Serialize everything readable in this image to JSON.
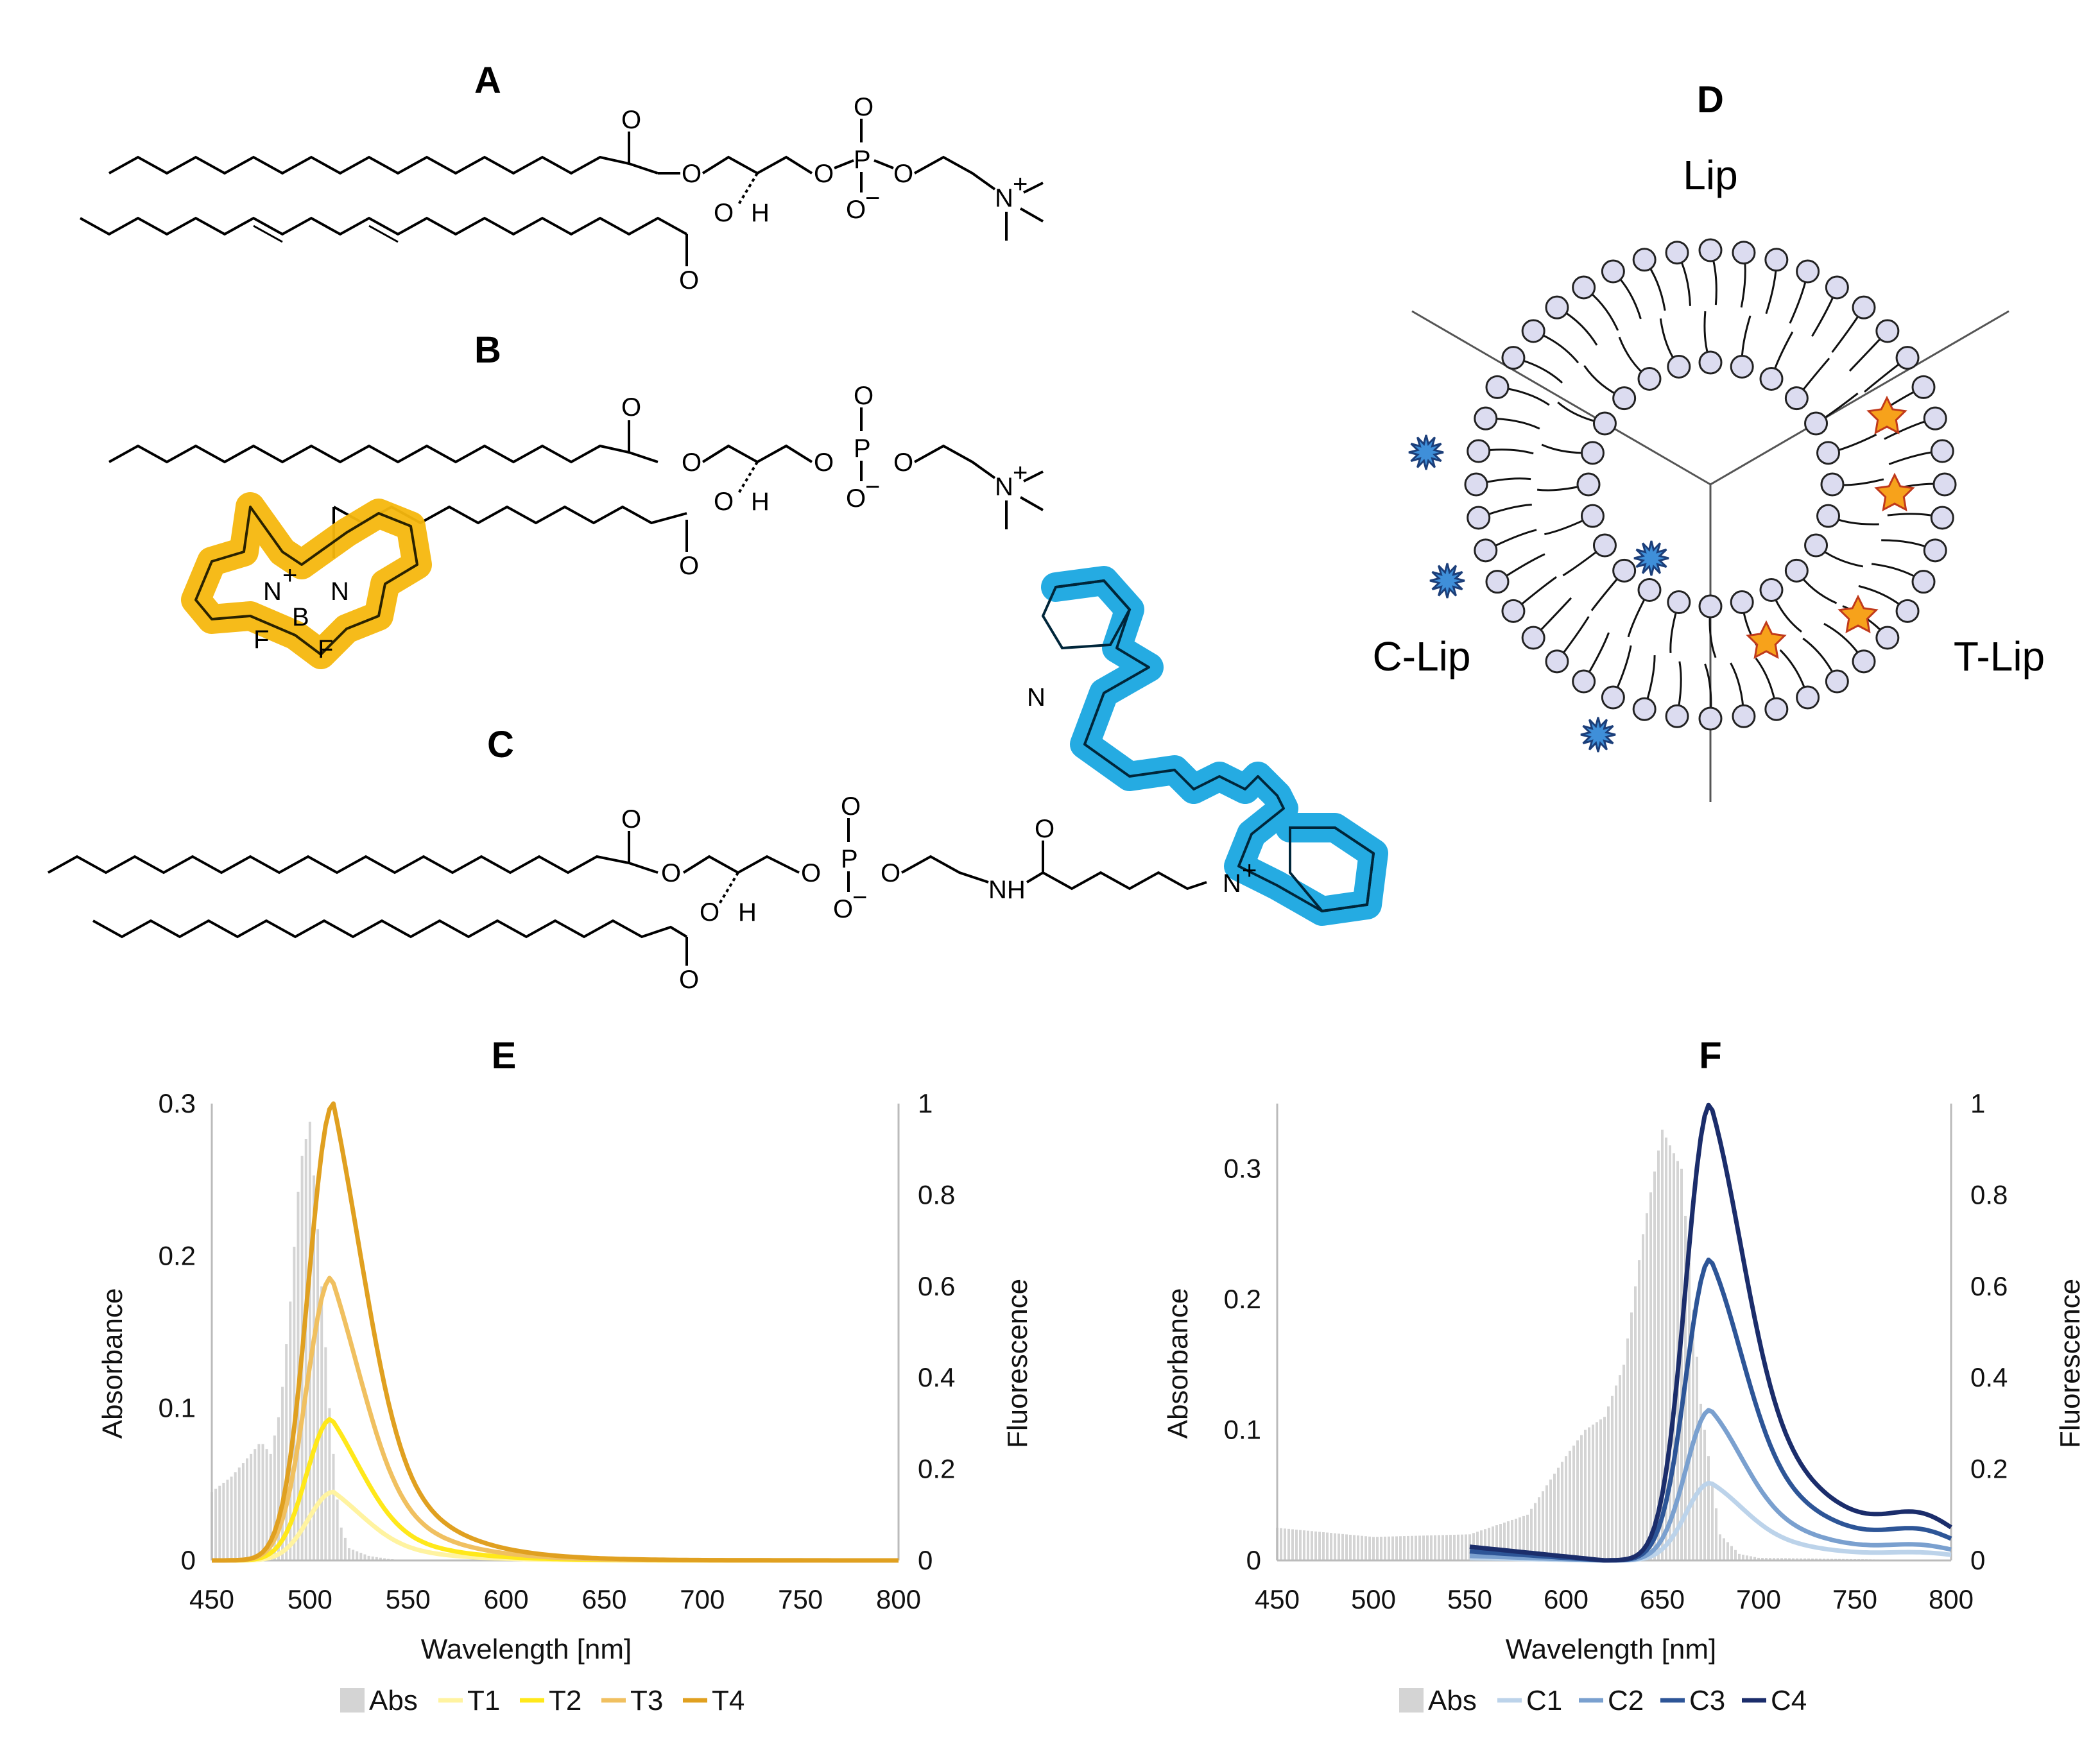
{
  "figure": {
    "panels": {
      "A": "A",
      "B": "B",
      "C": "C",
      "D": "D",
      "E": "E",
      "F": "F"
    },
    "chem": {
      "O": "O",
      "P": "P",
      "H": "H",
      "N": "N",
      "NH": "NH",
      "F": "F",
      "B": "B",
      "plus": "+",
      "minus": "−"
    },
    "liposome": {
      "lip": "Lip",
      "clip": "C-Lip",
      "tlip": "T-Lip"
    }
  },
  "chart_data": [
    {
      "id": "E",
      "type": "line",
      "title": "E",
      "xlabel": "Wavelength [nm]",
      "ylabel_left": "Absorbance",
      "ylabel_right": "Fluorescence",
      "xlim": [
        450,
        800
      ],
      "ylim_left": [
        0,
        0.3
      ],
      "ylim_right": [
        0,
        1
      ],
      "x_ticks": [
        450,
        500,
        550,
        600,
        650,
        700,
        750,
        800
      ],
      "y_left_ticks": [
        0,
        0.1,
        0.2,
        0.3
      ],
      "y_right_ticks": [
        0,
        0.2,
        0.4,
        0.6,
        0.8,
        1
      ],
      "absorbance": {
        "name": "Abs",
        "color": "#d4d4d4",
        "x": [
          450,
          460,
          470,
          475,
          480,
          485,
          490,
          495,
          500,
          505,
          510,
          515,
          520,
          530,
          540,
          550,
          575,
          600,
          800
        ],
        "y": [
          0.045,
          0.055,
          0.07,
          0.078,
          0.07,
          0.1,
          0.17,
          0.26,
          0.288,
          0.2,
          0.1,
          0.025,
          0.008,
          0.003,
          0.001,
          0.0,
          0.0,
          0.0,
          0.0
        ]
      },
      "series": [
        {
          "name": "T1",
          "color": "#fff3a0",
          "peak_x": 512,
          "peak": 0.15
        },
        {
          "name": "T2",
          "color": "#ffe81a",
          "peak_x": 511,
          "peak": 0.31
        },
        {
          "name": "T3",
          "color": "#f0c060",
          "peak_x": 511,
          "peak": 0.62
        },
        {
          "name": "T4",
          "color": "#e0a020",
          "peak_x": 512,
          "peak": 1.0
        }
      ],
      "legend": [
        "Abs",
        "T1",
        "T2",
        "T3",
        "T4"
      ]
    },
    {
      "id": "F",
      "type": "line",
      "title": "F",
      "xlabel": "Wavelength [nm]",
      "ylabel_left": "Absorbance",
      "ylabel_right": "Fluorescence",
      "xlim": [
        450,
        800
      ],
      "ylim_left": [
        0,
        0.35
      ],
      "ylim_right": [
        0,
        1
      ],
      "x_ticks": [
        450,
        500,
        550,
        600,
        650,
        700,
        750,
        800
      ],
      "y_left_ticks": [
        0,
        0.1,
        0.2,
        0.3
      ],
      "y_right_ticks": [
        0,
        0.2,
        0.4,
        0.6,
        0.8,
        1
      ],
      "absorbance": {
        "name": "Abs",
        "color": "#d4d4d4",
        "x": [
          450,
          500,
          550,
          580,
          600,
          610,
          620,
          630,
          640,
          650,
          660,
          670,
          680,
          690,
          700,
          750,
          800
        ],
        "y": [
          0.025,
          0.018,
          0.02,
          0.035,
          0.08,
          0.1,
          0.11,
          0.15,
          0.25,
          0.33,
          0.3,
          0.12,
          0.02,
          0.005,
          0.002,
          0.001,
          0.0
        ]
      },
      "series": [
        {
          "name": "C1",
          "color": "#bcd3ea",
          "peak_x": 675,
          "peak": 0.17
        },
        {
          "name": "C2",
          "color": "#7aa0cf",
          "peak_x": 675,
          "peak": 0.33
        },
        {
          "name": "C3",
          "color": "#2d5597",
          "peak_x": 675,
          "peak": 0.66
        },
        {
          "name": "C4",
          "color": "#1b2d6b",
          "peak_x": 675,
          "peak": 1.0
        }
      ],
      "legend": [
        "Abs",
        "C1",
        "C2",
        "C3",
        "C4"
      ]
    }
  ]
}
